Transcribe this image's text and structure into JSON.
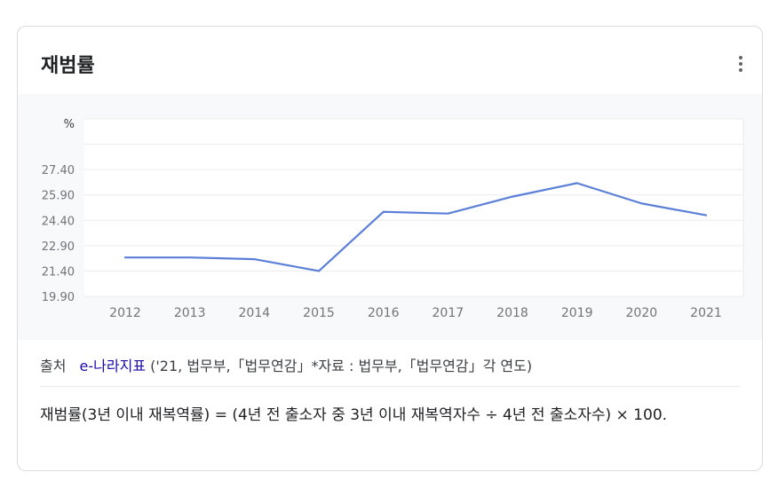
{
  "card": {
    "title": "재범률",
    "more_icon": "more-vert-icon"
  },
  "chart_data": {
    "type": "line",
    "ylabel": "%",
    "categories": [
      "2012",
      "2013",
      "2014",
      "2015",
      "2016",
      "2017",
      "2018",
      "2019",
      "2020",
      "2021"
    ],
    "yticks": [
      "19.90",
      "21.40",
      "22.90",
      "24.40",
      "25.90",
      "27.40"
    ],
    "ylim": [
      19.9,
      30.4
    ],
    "series": [
      {
        "values": [
          22.2,
          22.2,
          22.1,
          21.4,
          24.9,
          24.8,
          25.8,
          26.6,
          25.4,
          24.7
        ]
      }
    ],
    "grid": true,
    "colors": {
      "line": "#5b7fd8",
      "grid": "#ececec",
      "axis_text": "#70757a"
    }
  },
  "source": {
    "label": "출처",
    "link": "e-나라지표",
    "detail": "('21, 법무부,「법무연감」*자료 : 법무부,「법무연감」각 연도)"
  },
  "description": "재범률(3년 이내 재복역률) = (4년 전 출소자 중 3년 이내 재복역자수 ÷ 4년 전 출소자수) × 100."
}
